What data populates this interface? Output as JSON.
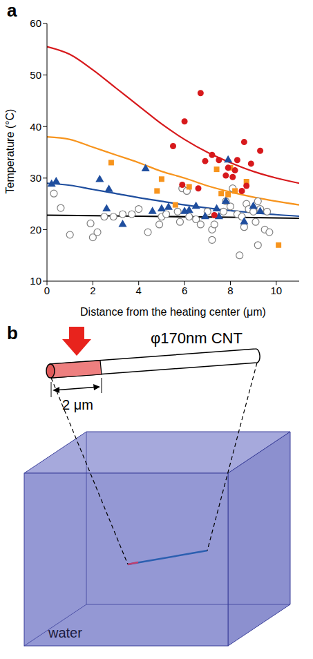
{
  "panel_labels": [
    "a",
    "b"
  ],
  "chart_data": {
    "type": "scatter",
    "x_label": "Distance from the heating center (μm)",
    "y_label": "Temperature (°C)",
    "xlim": [
      0,
      11
    ],
    "xticks": [
      0,
      2,
      4,
      6,
      8,
      10
    ],
    "ylim": [
      10,
      60
    ],
    "yticks": [
      10,
      20,
      30,
      40,
      50,
      60
    ],
    "grid": false,
    "series": [
      {
        "type": "scatter",
        "marker": "open_circle",
        "color": "#808080",
        "x": [
          0.3,
          0.6,
          1.0,
          1.9,
          2.0,
          2.2,
          2.5,
          2.9,
          3.3,
          3.7,
          4.0,
          4.4,
          4.9,
          5.0,
          5.2,
          5.7,
          5.8,
          5.9,
          6.1,
          6.2,
          6.5,
          6.7,
          7.0,
          7.2,
          7.2,
          7.3,
          7.7,
          7.8,
          8.0,
          8.1,
          8.3,
          8.4,
          8.5,
          8.6,
          8.7,
          8.8,
          9.0,
          9.1,
          9.2,
          9.2,
          9.3,
          9.5,
          9.6,
          9.7
        ],
        "values": [
          27,
          24.2,
          19,
          21.2,
          18.5,
          19.5,
          22.5,
          22.5,
          23,
          23,
          24,
          19.5,
          21,
          22.5,
          23,
          23.5,
          21.5,
          28,
          27.5,
          22.5,
          22,
          21,
          23.5,
          18,
          20,
          21,
          23.5,
          25.5,
          24.5,
          28,
          23,
          15,
          22.5,
          20.5,
          25,
          24,
          23.5,
          21.5,
          25.5,
          17,
          24,
          20,
          23.5,
          19.5
        ]
      },
      {
        "type": "scatter",
        "marker": "triangle",
        "color": "#1f4e9e",
        "x": [
          0.2,
          0.4,
          2.3,
          2.6,
          2.7,
          3.3,
          4.3,
          4.6,
          5.0,
          5.3,
          6.0,
          6.2,
          6.5,
          6.9,
          7.4,
          7.5,
          7.8,
          7.9,
          8.6,
          9.0,
          9.3
        ],
        "values": [
          28.8,
          29.3,
          29.7,
          24,
          27.8,
          21,
          31.8,
          23.5,
          24,
          24.3,
          23.5,
          23.7,
          24.5,
          22.5,
          24,
          22.5,
          25.5,
          33.5,
          21.5,
          24.5,
          23.5
        ]
      },
      {
        "type": "scatter",
        "marker": "square",
        "color": "#f7941d",
        "x": [
          2.8,
          4.8,
          5.0,
          5.6,
          6.2,
          7.4,
          7.6,
          7.9,
          8.0,
          8.2,
          8.7,
          10.1
        ],
        "values": [
          33,
          27.5,
          29.8,
          24.8,
          28.3,
          31.7,
          27,
          26.8,
          32,
          27.5,
          29.3,
          17
        ]
      },
      {
        "type": "scatter",
        "marker": "circle",
        "color": "#d7191c",
        "x": [
          5.5,
          5.9,
          6.0,
          6.6,
          6.7,
          6.9,
          7.2,
          7.3,
          7.5,
          7.8,
          7.9,
          8.1,
          8.2,
          8.3,
          8.5,
          8.6,
          8.7,
          8.9,
          9.3
        ],
        "values": [
          36.2,
          28.7,
          41,
          28,
          46.5,
          33.3,
          34.5,
          22.8,
          33.5,
          30.5,
          32,
          30.2,
          31.5,
          33.5,
          27.5,
          37,
          28.5,
          32.8,
          35.3
        ]
      },
      {
        "type": "line",
        "line_style": "solid",
        "color": "#000000",
        "x": [
          0,
          4,
          8,
          11
        ],
        "values": [
          22.8,
          22.6,
          22.4,
          22.2
        ]
      },
      {
        "type": "line",
        "line_style": "solid",
        "color": "#1f4e9e",
        "x": [
          0,
          1,
          2,
          3,
          4,
          5,
          6,
          7,
          8,
          9,
          10,
          11
        ],
        "values": [
          29,
          28.6,
          27.8,
          27,
          26.2,
          25.5,
          24.8,
          24.2,
          23.7,
          23.3,
          22.9,
          22.6
        ]
      },
      {
        "type": "line",
        "line_style": "solid",
        "color": "#f7941d",
        "x": [
          0,
          1,
          2,
          3,
          4,
          5,
          6,
          7,
          8,
          9,
          10,
          11
        ],
        "values": [
          38,
          37.5,
          36,
          34.5,
          33,
          31.3,
          30,
          28.5,
          27.3,
          26.3,
          25.5,
          24.8
        ]
      },
      {
        "type": "line",
        "line_style": "solid",
        "color": "#d7191c",
        "x": [
          0,
          1,
          2,
          3,
          4,
          5,
          6,
          7,
          8,
          9,
          10,
          11
        ],
        "values": [
          55.5,
          54,
          51,
          47.5,
          44,
          40.5,
          37.5,
          35,
          33,
          31.3,
          30,
          29
        ]
      }
    ]
  },
  "diagram": {
    "cnt_label": "φ170nm CNT",
    "heated_length_label": "2 μm",
    "medium_label": "water"
  }
}
